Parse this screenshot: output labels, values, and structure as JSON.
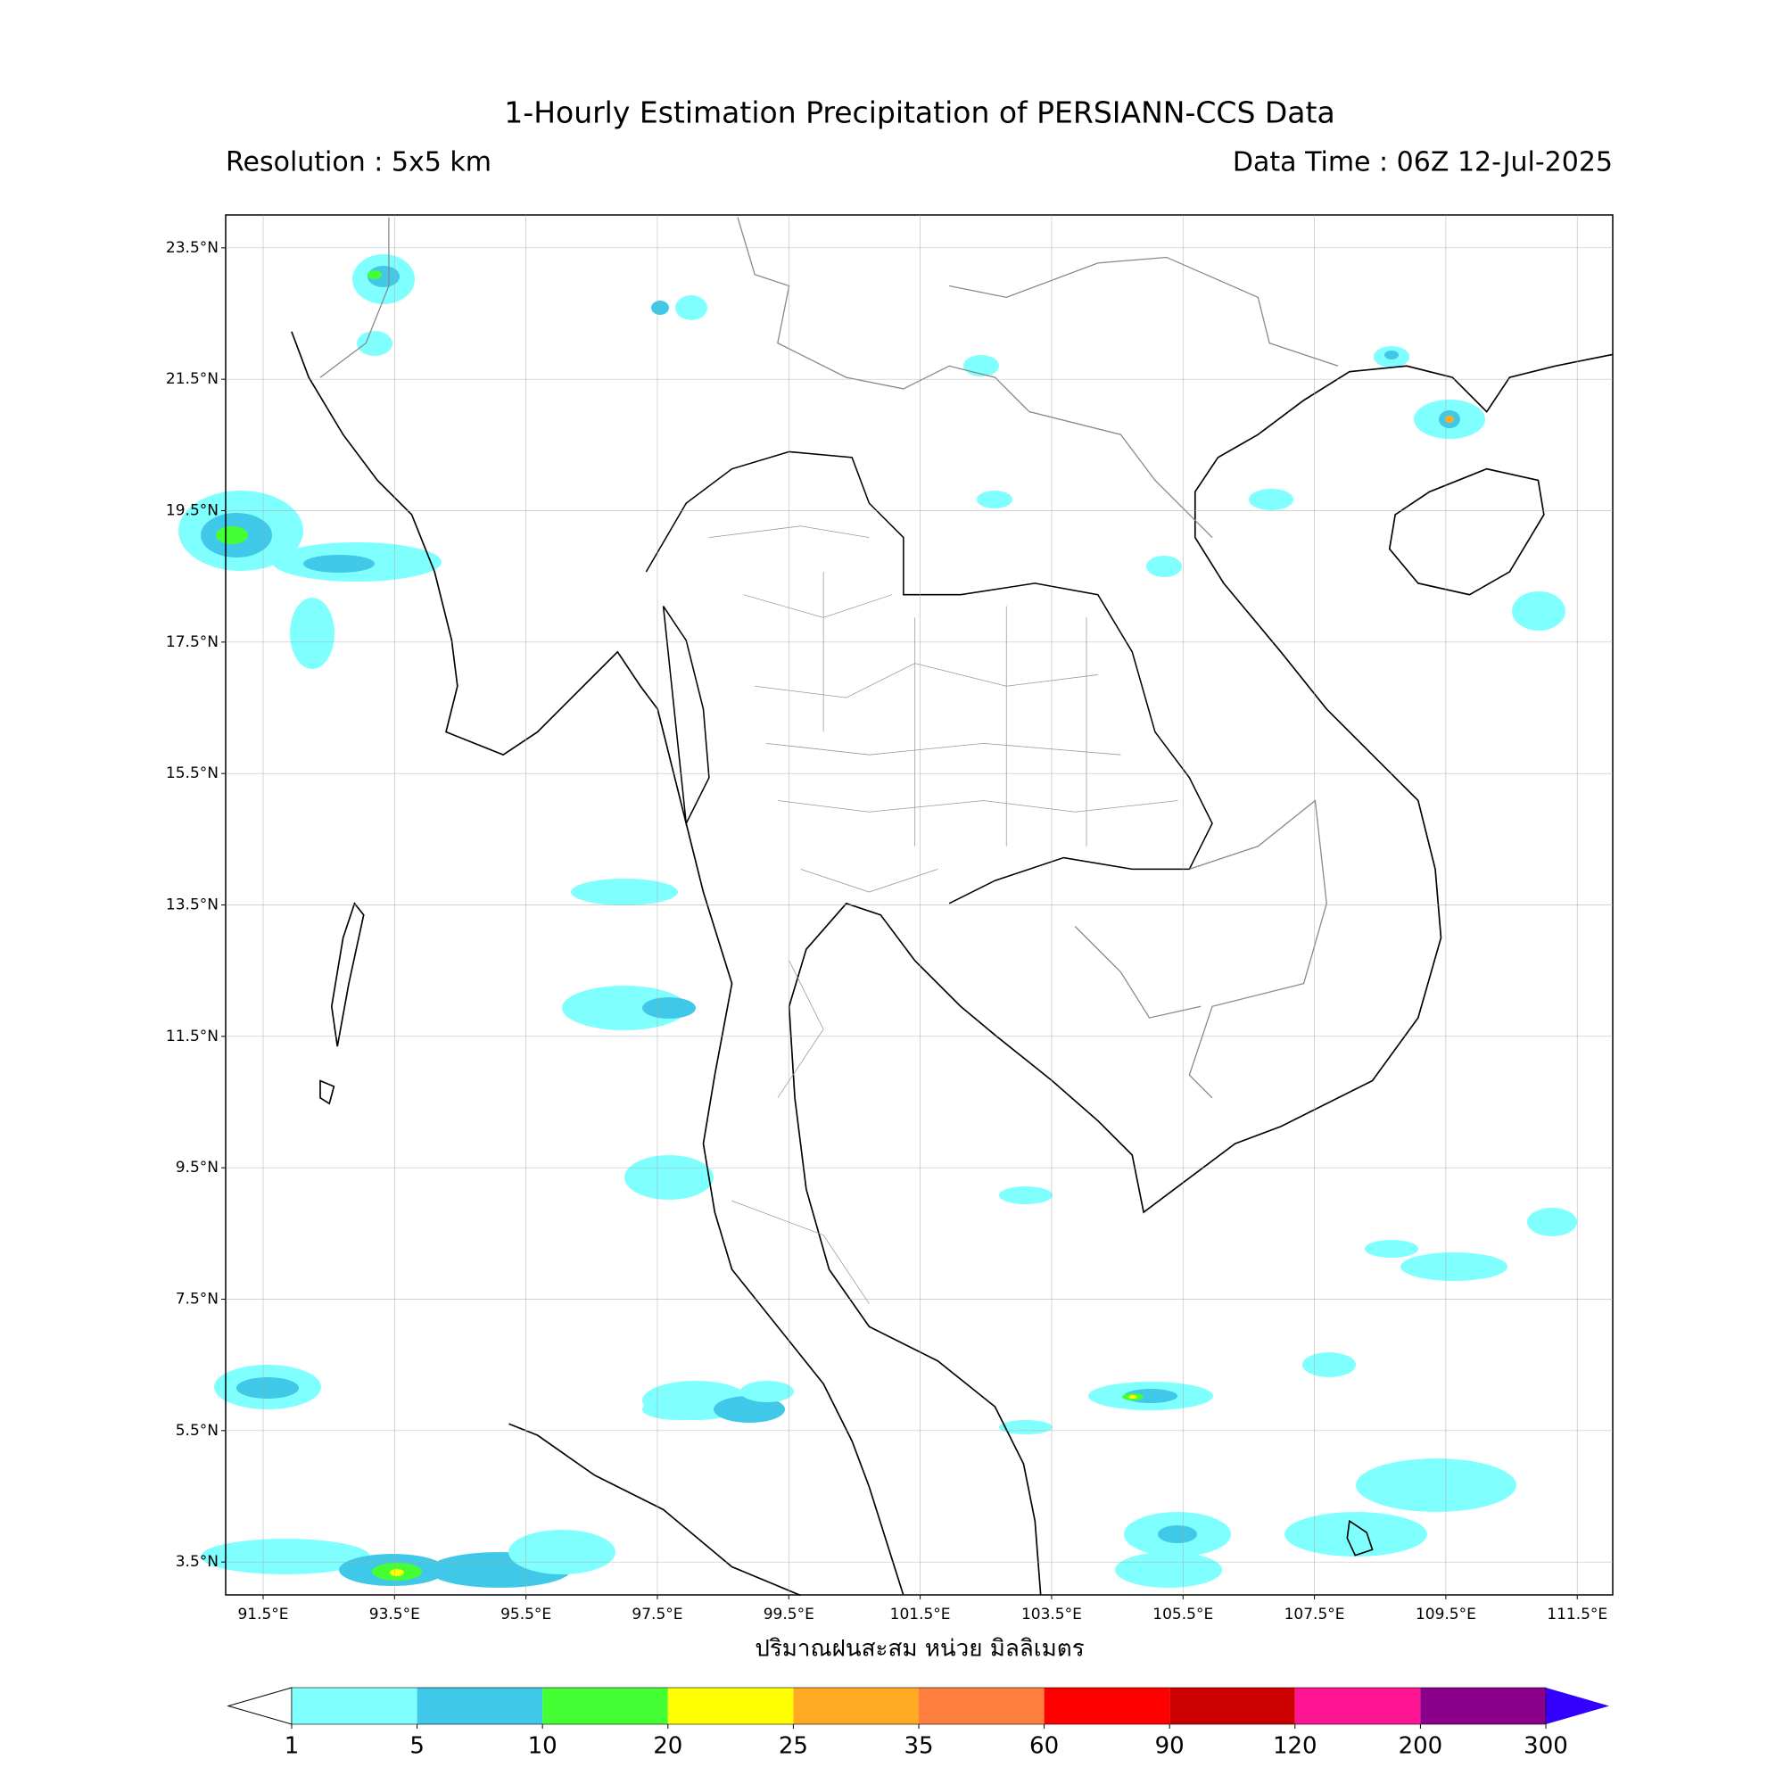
{
  "title": "1-Hourly Estimation Precipitation of PERSIANN-CCS Data",
  "resolution": "Resolution : 5x5 km",
  "data_time": "Data Time : 06Z 12-Jul-2025",
  "map": {
    "xlim": [
      90.93,
      112.04
    ],
    "ylim": [
      3.0,
      24.0
    ],
    "xticks": [
      {
        "value": 91.5,
        "label": "91.5°E"
      },
      {
        "value": 93.5,
        "label": "93.5°E"
      },
      {
        "value": 95.5,
        "label": "95.5°E"
      },
      {
        "value": 97.5,
        "label": "97.5°E"
      },
      {
        "value": 99.5,
        "label": "99.5°E"
      },
      {
        "value": 101.5,
        "label": "101.5°E"
      },
      {
        "value": 103.5,
        "label": "103.5°E"
      },
      {
        "value": 105.5,
        "label": "105.5°E"
      },
      {
        "value": 107.5,
        "label": "107.5°E"
      },
      {
        "value": 109.5,
        "label": "109.5°E"
      },
      {
        "value": 111.5,
        "label": "111.5°E"
      }
    ],
    "yticks": [
      {
        "value": 3.5,
        "label": "3.5°N"
      },
      {
        "value": 5.5,
        "label": "5.5°N"
      },
      {
        "value": 7.5,
        "label": "7.5°N"
      },
      {
        "value": 9.5,
        "label": "9.5°N"
      },
      {
        "value": 11.5,
        "label": "11.5°N"
      },
      {
        "value": 13.5,
        "label": "13.5°N"
      },
      {
        "value": 15.5,
        "label": "15.5°N"
      },
      {
        "value": 17.5,
        "label": "17.5°N"
      },
      {
        "value": 19.5,
        "label": "19.5°N"
      },
      {
        "value": 21.5,
        "label": "21.5°N"
      },
      {
        "value": 23.5,
        "label": "23.5°N"
      }
    ],
    "xlabel": "ปริมาณฝนสะสม หน่วย มิลลิเมตร"
  },
  "colorbar": {
    "levels": [
      1,
      5,
      10,
      20,
      25,
      35,
      60,
      90,
      120,
      200,
      300
    ],
    "colors": [
      "#80ffff",
      "#40c8e8",
      "#44ff33",
      "#ffff00",
      "#ffaa22",
      "#ff7f3f",
      "#ff0000",
      "#cc0000",
      "#ff1493",
      "#8b008b"
    ],
    "under_color": "#ffffff",
    "over_color": "#3300ff"
  }
}
